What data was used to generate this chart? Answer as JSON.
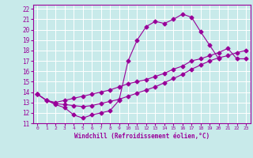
{
  "xlabel": "Windchill (Refroidissement éolien,°C)",
  "bg_color": "#c8eaea",
  "line_color": "#990099",
  "grid_color": "#ffffff",
  "xlim": [
    -0.5,
    23.5
  ],
  "ylim": [
    11,
    22.4
  ],
  "line1_x": [
    0,
    1,
    2,
    3,
    4,
    5,
    6,
    7,
    8,
    9,
    10,
    11,
    12,
    13,
    14,
    15,
    16,
    17,
    18,
    19,
    20
  ],
  "line1_y": [
    13.8,
    13.2,
    12.8,
    12.5,
    11.8,
    11.5,
    11.8,
    12.0,
    12.2,
    13.2,
    17.0,
    19.0,
    20.3,
    20.8,
    20.6,
    21.0,
    21.5,
    21.2,
    19.8,
    18.5,
    17.2
  ],
  "line2_x": [
    0,
    1,
    2,
    3,
    4,
    5,
    6,
    7,
    8,
    9,
    10,
    11,
    12,
    13,
    14,
    15,
    16,
    17,
    18,
    19,
    20,
    21,
    22,
    23
  ],
  "line2_y": [
    13.8,
    13.2,
    12.9,
    12.8,
    12.7,
    12.6,
    12.7,
    12.9,
    13.1,
    13.3,
    13.6,
    13.9,
    14.2,
    14.5,
    14.9,
    15.3,
    15.7,
    16.2,
    16.6,
    17.0,
    17.3,
    17.5,
    17.8,
    18.0
  ],
  "line3_x": [
    0,
    1,
    2,
    3,
    4,
    5,
    6,
    7,
    8,
    9,
    10,
    11,
    12,
    13,
    14,
    15,
    16,
    17,
    18,
    19,
    20,
    21,
    22,
    23
  ],
  "line3_y": [
    13.8,
    13.2,
    13.0,
    13.2,
    13.4,
    13.6,
    13.8,
    14.0,
    14.2,
    14.5,
    14.8,
    15.0,
    15.2,
    15.5,
    15.8,
    16.2,
    16.5,
    17.0,
    17.2,
    17.5,
    17.8,
    18.2,
    17.2,
    17.2
  ],
  "xtick_fontsize": 4.5,
  "ytick_fontsize": 5.5,
  "xlabel_fontsize": 5.5,
  "marker_size": 2.5,
  "linewidth": 0.8
}
